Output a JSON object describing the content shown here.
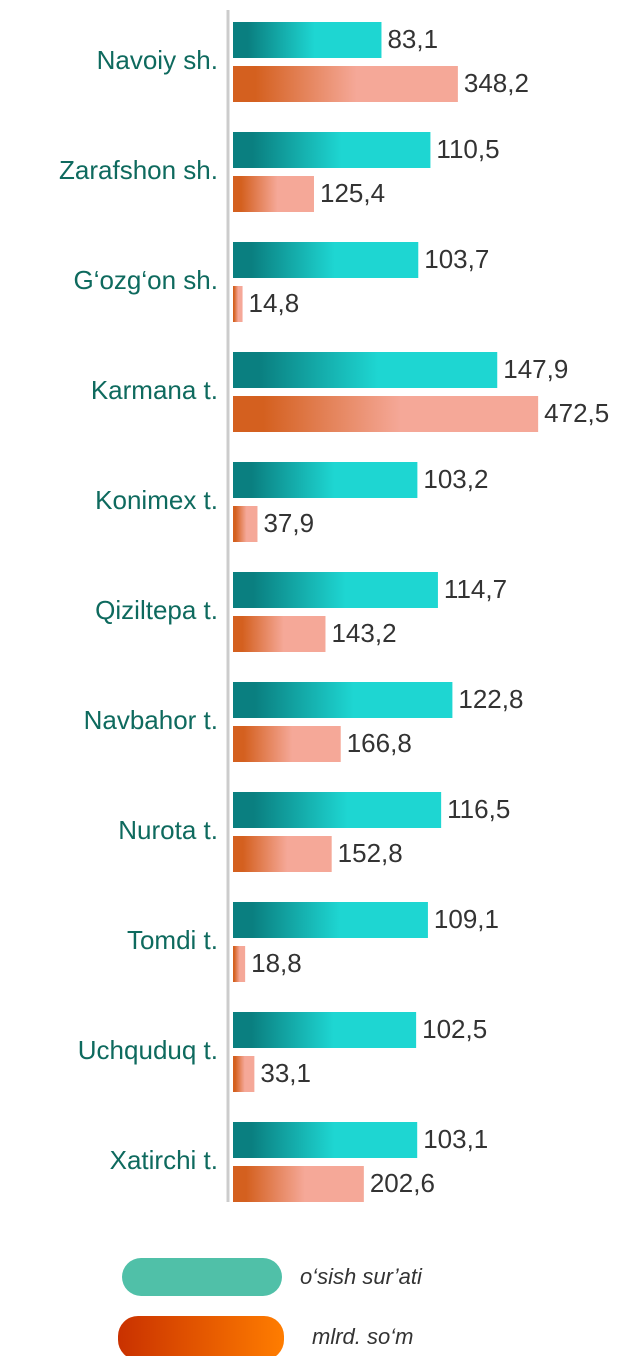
{
  "chart_data": {
    "type": "bar",
    "orientation": "horizontal",
    "categories": [
      "Navoiy sh.",
      "Zarafshon sh.",
      "G‘ozg‘on sh.",
      "Karmana t.",
      "Konimex t.",
      "Qiziltepa t.",
      "Navbahor t.",
      "Nurota t.",
      "Tomdi t.",
      "Uchquduq t.",
      "Xatirchi t."
    ],
    "xlim": [
      0,
      150
    ],
    "x2lim": [
      0,
      480
    ],
    "series": [
      {
        "name": "o‘sish sur’ati",
        "color": "#1ed6d2",
        "gradient": [
          "#0a7f80",
          "#1ed6d2"
        ],
        "values": [
          83.1,
          110.5,
          103.7,
          147.9,
          103.2,
          114.7,
          122.8,
          116.5,
          109.1,
          102.5,
          103.1
        ],
        "value_labels": [
          "83,1",
          "110,5",
          "103,7",
          "147,9",
          "103,2",
          "114,7",
          "122,8",
          "116,5",
          "109,1",
          "102,5",
          "103,1"
        ]
      },
      {
        "name": "mlrd. so‘m",
        "color": "#d4601f",
        "gradient": [
          "#d4601f",
          "#f5a898"
        ],
        "axis": "x2",
        "values": [
          348.2,
          125.4,
          14.8,
          472.5,
          37.9,
          143.2,
          166.8,
          152.8,
          18.8,
          33.1,
          202.6
        ],
        "value_labels": [
          "348,2",
          "125,4",
          "14,8",
          "472,5",
          "37,9",
          "143,2",
          "166,8",
          "152,8",
          "18,8",
          "33,1",
          "202,6"
        ]
      }
    ],
    "legend": "bottom"
  }
}
